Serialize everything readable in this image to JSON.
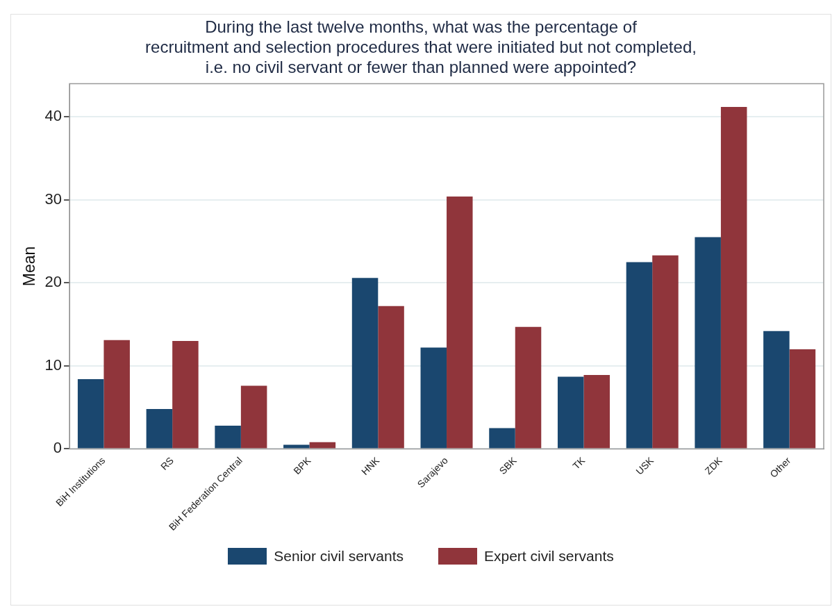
{
  "chart_data": {
    "type": "bar",
    "title": "During the last twelve months, what was the percentage of\nrecruitment and selection procedures that were initiated but not completed,\ni.e. no civil servant or fewer than planned were appointed?",
    "ylabel": "Mean",
    "categories": [
      "BiH Institutions",
      "RS",
      "BiH Federation Central",
      "BPK",
      "HNK",
      "Sarajevo",
      "SBK",
      "TK",
      "USK",
      "ZDK",
      "Other"
    ],
    "series": [
      {
        "name": "Senior civil servants",
        "color": "#1a476f",
        "values": [
          8.4,
          4.8,
          2.8,
          0.5,
          20.6,
          12.2,
          2.5,
          8.7,
          22.5,
          25.5,
          14.2
        ]
      },
      {
        "name": "Expert civil servants",
        "color": "#90353b",
        "values": [
          13.1,
          13.0,
          7.6,
          0.8,
          17.2,
          30.4,
          14.7,
          8.9,
          23.3,
          41.2,
          12.0
        ]
      }
    ],
    "ylim": [
      0,
      44
    ],
    "yticks": [
      0,
      10,
      20,
      30,
      40
    ],
    "grid": "y",
    "legend": "bottom"
  }
}
